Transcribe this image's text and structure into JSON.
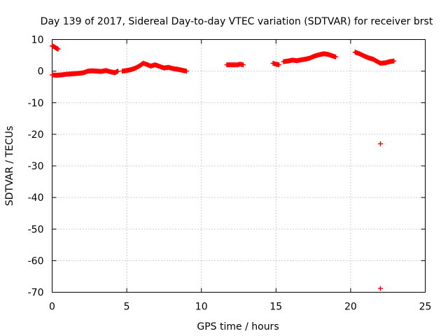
{
  "chart_data": {
    "type": "scatter",
    "title": "Day 139 of 2017, Sidereal Day-to-day VTEC variation (SDTVAR) for receiver brst",
    "xlabel": "GPS time / hours",
    "ylabel": "SDTVAR / TECUs",
    "xlim": [
      0,
      25
    ],
    "ylim": [
      -70,
      10
    ],
    "xticks": [
      0,
      5,
      10,
      15,
      20,
      25
    ],
    "yticks": [
      10,
      0,
      -10,
      -20,
      -30,
      -40,
      -50,
      -60,
      -70
    ],
    "grid": true,
    "marker": "+",
    "color": "#ff0000",
    "series": [
      {
        "name": "SDTVAR",
        "segments": [
          {
            "x": [
              0.0,
              0.1,
              0.2,
              0.3,
              0.4
            ],
            "y": [
              8.0,
              7.8,
              7.5,
              7.2,
              7.0
            ]
          },
          {
            "x": [
              0.0,
              0.3,
              0.6,
              0.9,
              1.2,
              1.5,
              1.8,
              2.1,
              2.4,
              2.7,
              3.0,
              3.3,
              3.6,
              3.9,
              4.2,
              4.4
            ],
            "y": [
              -1.2,
              -1.3,
              -1.2,
              -1.0,
              -0.9,
              -0.8,
              -0.7,
              -0.5,
              0.0,
              0.1,
              0.0,
              -0.1,
              0.2,
              -0.2,
              -0.5,
              0.0
            ]
          },
          {
            "x": [
              4.7,
              5.0,
              5.3,
              5.6,
              5.9,
              6.1,
              6.3,
              6.6,
              6.9,
              7.2,
              7.5,
              7.8,
              8.1,
              8.4,
              8.7,
              9.0
            ],
            "y": [
              0.0,
              0.2,
              0.5,
              1.0,
              1.8,
              2.5,
              2.2,
              1.6,
              2.0,
              1.5,
              1.0,
              1.2,
              0.8,
              0.6,
              0.3,
              0.0
            ]
          },
          {
            "x": [
              11.7,
              11.9,
              12.4,
              12.6,
              12.8
            ],
            "y": [
              2.0,
              2.0,
              2.0,
              2.2,
              2.0
            ]
          },
          {
            "x": [
              14.8,
              15.0,
              15.2
            ],
            "y": [
              2.5,
              2.2,
              2.0
            ]
          },
          {
            "x": [
              15.5,
              15.8,
              16.1,
              16.4,
              16.7,
              17.0,
              17.3,
              17.6,
              17.9,
              18.2,
              18.5,
              18.8,
              19.0
            ],
            "y": [
              3.0,
              3.2,
              3.5,
              3.3,
              3.6,
              3.8,
              4.2,
              4.8,
              5.2,
              5.5,
              5.3,
              4.8,
              4.5
            ]
          },
          {
            "x": [
              20.3,
              20.6,
              20.9,
              21.2,
              21.5,
              21.8,
              22.0,
              22.3,
              22.6,
              22.9
            ],
            "y": [
              6.0,
              5.5,
              4.8,
              4.2,
              3.8,
              3.0,
              2.5,
              2.6,
              3.0,
              3.2
            ]
          },
          {
            "x": [
              22.0
            ],
            "y": [
              -23.0
            ]
          },
          {
            "x": [
              22.0
            ],
            "y": [
              -68.8
            ]
          }
        ]
      }
    ]
  }
}
